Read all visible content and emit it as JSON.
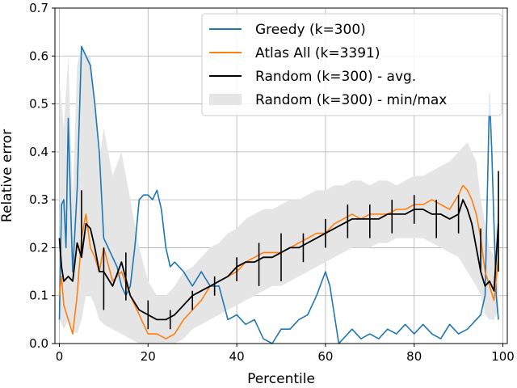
{
  "chart_data": {
    "type": "line",
    "xlabel": "Percentile",
    "ylabel": "Relative error",
    "xlim": [
      -1,
      101
    ],
    "ylim": [
      0.0,
      0.7
    ],
    "xticks": [
      0,
      20,
      40,
      60,
      80,
      100
    ],
    "yticks": [
      0.0,
      0.1,
      0.2,
      0.3,
      0.4,
      0.5,
      0.6,
      0.7
    ],
    "xtick_labels": [
      "0",
      "20",
      "40",
      "60",
      "80",
      "100"
    ],
    "ytick_labels": [
      "0.0",
      "0.1",
      "0.2",
      "0.3",
      "0.4",
      "0.5",
      "0.6",
      "0.7"
    ],
    "grid": true,
    "legend_position": "upper right",
    "legend": [
      {
        "label": "Greedy (k=300)",
        "kind": "line",
        "color": "#1f77b4"
      },
      {
        "label": "Atlas All (k=3391)",
        "kind": "line",
        "color": "#ff7f0e"
      },
      {
        "label": "Random (k=300) - avg.",
        "kind": "line",
        "color": "#000000"
      },
      {
        "label": "Random (k=300) - min/max",
        "kind": "band",
        "color": "#e5e5e5"
      }
    ],
    "series": [
      {
        "name": "Greedy (k=300)",
        "color": "#1f77b4",
        "x": [
          0,
          0.5,
          1,
          1.5,
          2,
          2.5,
          3,
          4,
          5,
          6,
          7,
          8,
          9,
          10,
          11,
          12,
          13,
          14,
          15,
          16,
          17,
          18,
          19,
          20,
          21,
          22,
          23,
          24,
          25,
          26,
          28,
          30,
          32,
          34,
          36,
          38,
          40,
          42,
          44,
          45,
          46,
          48,
          50,
          52,
          54,
          56,
          58,
          60,
          61,
          62,
          63,
          64,
          66,
          68,
          70,
          72,
          74,
          76,
          78,
          80,
          82,
          84,
          86,
          88,
          90,
          92,
          94,
          95,
          96,
          97,
          97.5,
          98,
          98.5,
          99
        ],
        "y": [
          0.05,
          0.29,
          0.3,
          0.2,
          0.47,
          0.3,
          0.15,
          0.32,
          0.62,
          0.6,
          0.58,
          0.5,
          0.4,
          0.22,
          0.2,
          0.18,
          0.16,
          0.12,
          0.1,
          0.12,
          0.2,
          0.3,
          0.31,
          0.31,
          0.3,
          0.32,
          0.28,
          0.2,
          0.16,
          0.17,
          0.15,
          0.12,
          0.15,
          0.12,
          0.12,
          0.05,
          0.06,
          0.04,
          0.05,
          0.03,
          0.01,
          0.0,
          0.03,
          0.03,
          0.05,
          0.06,
          0.1,
          0.15,
          0.12,
          0.06,
          0.0,
          0.01,
          0.03,
          0.01,
          0.02,
          0.01,
          0.03,
          0.02,
          0.04,
          0.02,
          0.04,
          0.02,
          0.01,
          0.04,
          0.02,
          0.03,
          0.05,
          0.06,
          0.1,
          0.52,
          0.4,
          0.25,
          0.1,
          0.05
        ]
      },
      {
        "name": "Atlas All (k=3391)",
        "color": "#ff7f0e",
        "x": [
          0,
          0.5,
          1,
          2,
          3,
          4,
          5,
          6,
          7,
          8,
          9,
          10,
          12,
          14,
          16,
          18,
          20,
          22,
          24,
          26,
          28,
          30,
          32,
          34,
          36,
          38,
          40,
          42,
          44,
          46,
          48,
          50,
          52,
          54,
          56,
          58,
          60,
          62,
          64,
          66,
          68,
          70,
          72,
          74,
          76,
          78,
          80,
          82,
          84,
          86,
          88,
          90,
          91,
          92,
          93,
          94,
          95,
          96,
          97,
          98,
          99
        ],
        "y": [
          0.1,
          0.14,
          0.08,
          0.05,
          0.02,
          0.1,
          0.22,
          0.27,
          0.2,
          0.18,
          0.15,
          0.2,
          0.13,
          0.15,
          0.1,
          0.06,
          0.02,
          0.02,
          0.01,
          0.02,
          0.05,
          0.07,
          0.09,
          0.12,
          0.13,
          0.14,
          0.15,
          0.17,
          0.18,
          0.19,
          0.19,
          0.19,
          0.2,
          0.21,
          0.22,
          0.23,
          0.23,
          0.25,
          0.26,
          0.27,
          0.26,
          0.27,
          0.27,
          0.27,
          0.28,
          0.28,
          0.29,
          0.29,
          0.3,
          0.29,
          0.28,
          0.31,
          0.33,
          0.32,
          0.3,
          0.27,
          0.22,
          0.15,
          0.12,
          0.09,
          0.18
        ]
      },
      {
        "name": "Random (k=300) - avg.",
        "color": "#000000",
        "x": [
          0,
          0.5,
          1,
          2,
          3,
          4,
          5,
          6,
          7,
          8,
          9,
          10,
          12,
          14,
          16,
          18,
          20,
          22,
          24,
          26,
          28,
          30,
          32,
          34,
          36,
          38,
          40,
          42,
          44,
          46,
          48,
          50,
          52,
          54,
          56,
          58,
          60,
          62,
          64,
          66,
          68,
          70,
          72,
          74,
          76,
          78,
          80,
          82,
          84,
          86,
          88,
          90,
          91,
          92,
          93,
          94,
          95,
          96,
          97,
          98,
          99
        ],
        "y": [
          0.22,
          0.16,
          0.13,
          0.14,
          0.13,
          0.21,
          0.18,
          0.25,
          0.24,
          0.2,
          0.15,
          0.15,
          0.12,
          0.17,
          0.1,
          0.07,
          0.06,
          0.05,
          0.05,
          0.06,
          0.08,
          0.1,
          0.11,
          0.12,
          0.13,
          0.14,
          0.16,
          0.17,
          0.17,
          0.18,
          0.18,
          0.19,
          0.2,
          0.2,
          0.21,
          0.22,
          0.23,
          0.24,
          0.25,
          0.26,
          0.26,
          0.26,
          0.26,
          0.27,
          0.27,
          0.27,
          0.28,
          0.28,
          0.27,
          0.27,
          0.26,
          0.27,
          0.3,
          0.28,
          0.25,
          0.2,
          0.15,
          0.12,
          0.13,
          0.11,
          0.25
        ]
      }
    ],
    "band": {
      "name": "Random (k=300) - min/max",
      "color": "#e5e5e5",
      "x": [
        0,
        1,
        2,
        3,
        4,
        5,
        6,
        7,
        8,
        9,
        10,
        12,
        14,
        16,
        18,
        20,
        22,
        24,
        26,
        28,
        30,
        32,
        34,
        36,
        38,
        40,
        42,
        44,
        46,
        48,
        50,
        52,
        54,
        56,
        58,
        60,
        62,
        64,
        66,
        68,
        70,
        72,
        74,
        76,
        78,
        80,
        82,
        84,
        86,
        88,
        90,
        92,
        94,
        95,
        96,
        97,
        98,
        99
      ],
      "upper": [
        0.55,
        0.45,
        0.6,
        0.3,
        0.58,
        0.62,
        0.6,
        0.6,
        0.5,
        0.38,
        0.45,
        0.35,
        0.4,
        0.3,
        0.2,
        0.13,
        0.1,
        0.1,
        0.12,
        0.15,
        0.16,
        0.18,
        0.2,
        0.21,
        0.23,
        0.24,
        0.26,
        0.27,
        0.28,
        0.28,
        0.29,
        0.3,
        0.3,
        0.31,
        0.32,
        0.32,
        0.33,
        0.33,
        0.34,
        0.34,
        0.33,
        0.34,
        0.34,
        0.33,
        0.34,
        0.35,
        0.35,
        0.36,
        0.37,
        0.38,
        0.4,
        0.42,
        0.38,
        0.3,
        0.25,
        0.2,
        0.18,
        0.3
      ],
      "lower": [
        0.05,
        0.03,
        0.05,
        0.03,
        0.02,
        0.05,
        0.1,
        0.1,
        0.08,
        0.05,
        0.04,
        0.03,
        0.02,
        0.01,
        0.0,
        0.0,
        0.0,
        0.0,
        0.0,
        0.01,
        0.03,
        0.04,
        0.05,
        0.06,
        0.07,
        0.08,
        0.09,
        0.1,
        0.11,
        0.12,
        0.12,
        0.13,
        0.14,
        0.15,
        0.16,
        0.17,
        0.18,
        0.19,
        0.2,
        0.2,
        0.2,
        0.21,
        0.21,
        0.22,
        0.22,
        0.22,
        0.22,
        0.21,
        0.2,
        0.19,
        0.18,
        0.15,
        0.12,
        0.1,
        0.06,
        0.05,
        0.05,
        0.07
      ]
    },
    "error_bars": {
      "color": "#000000",
      "points": [
        {
          "x": 5,
          "lo": 0.18,
          "hi": 0.32
        },
        {
          "x": 10,
          "lo": 0.07,
          "hi": 0.2
        },
        {
          "x": 15,
          "lo": 0.09,
          "hi": 0.19
        },
        {
          "x": 20,
          "lo": 0.03,
          "hi": 0.09
        },
        {
          "x": 25,
          "lo": 0.03,
          "hi": 0.07
        },
        {
          "x": 30,
          "lo": 0.07,
          "hi": 0.11
        },
        {
          "x": 35,
          "lo": 0.1,
          "hi": 0.14
        },
        {
          "x": 40,
          "lo": 0.13,
          "hi": 0.18
        },
        {
          "x": 45,
          "lo": 0.12,
          "hi": 0.21
        },
        {
          "x": 50,
          "lo": 0.13,
          "hi": 0.23
        },
        {
          "x": 55,
          "lo": 0.17,
          "hi": 0.23
        },
        {
          "x": 60,
          "lo": 0.2,
          "hi": 0.26
        },
        {
          "x": 65,
          "lo": 0.22,
          "hi": 0.29
        },
        {
          "x": 70,
          "lo": 0.22,
          "hi": 0.29
        },
        {
          "x": 75,
          "lo": 0.23,
          "hi": 0.3
        },
        {
          "x": 80,
          "lo": 0.25,
          "hi": 0.31
        },
        {
          "x": 85,
          "lo": 0.22,
          "hi": 0.3
        },
        {
          "x": 90,
          "lo": 0.23,
          "hi": 0.31
        },
        {
          "x": 95,
          "lo": 0.15,
          "hi": 0.24
        },
        {
          "x": 99,
          "lo": 0.15,
          "hi": 0.36
        }
      ]
    }
  }
}
